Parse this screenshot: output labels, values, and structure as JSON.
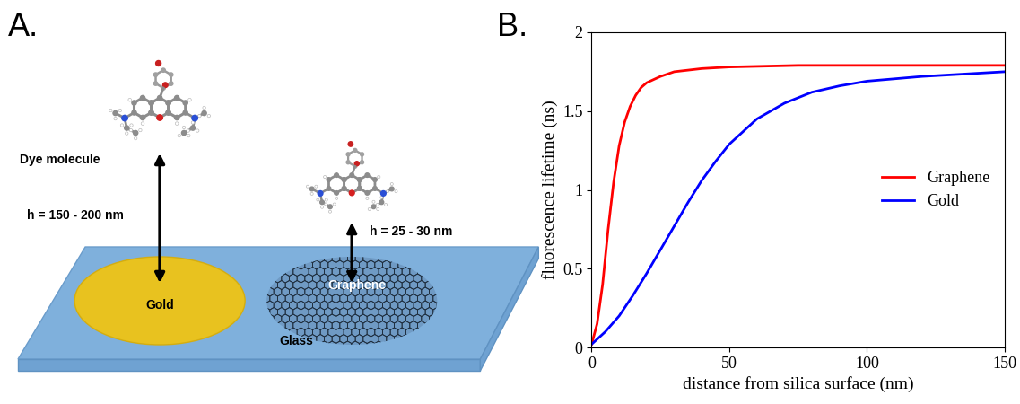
{
  "panel_labels": [
    "A.",
    "B."
  ],
  "diagram": {
    "molecule_label": "Dye molecule",
    "gold": {
      "label": "Gold",
      "height_label": "h = 150 - 200 nm"
    },
    "graphene": {
      "label": "Graphene",
      "height_label": "h = 25 - 30 nm"
    },
    "substrate": "Glass"
  },
  "chart_data": {
    "type": "line",
    "x_label": "distance from silica surface (nm)",
    "y_label": "fluorescence lifetime (ns)",
    "xlim": [
      0,
      150
    ],
    "ylim": [
      0,
      2
    ],
    "xticks": [
      0,
      50,
      100,
      150
    ],
    "yticks": [
      0,
      0.5,
      1,
      1.5,
      2
    ],
    "legend": "center right",
    "series": [
      {
        "name": "Graphene",
        "color": "#ff0000",
        "x": [
          0,
          2,
          4,
          6,
          8,
          10,
          12,
          14,
          16,
          18,
          20,
          25,
          30,
          40,
          50,
          75,
          100,
          150
        ],
        "values": [
          0.02,
          0.15,
          0.4,
          0.75,
          1.05,
          1.28,
          1.43,
          1.53,
          1.6,
          1.65,
          1.68,
          1.72,
          1.75,
          1.77,
          1.78,
          1.79,
          1.79,
          1.79
        ]
      },
      {
        "name": "Gold",
        "color": "#0000ff",
        "x": [
          0,
          5,
          10,
          15,
          20,
          25,
          30,
          35,
          40,
          45,
          50,
          60,
          70,
          80,
          90,
          100,
          120,
          150
        ],
        "values": [
          0.02,
          0.1,
          0.2,
          0.33,
          0.47,
          0.62,
          0.77,
          0.92,
          1.06,
          1.18,
          1.29,
          1.45,
          1.55,
          1.62,
          1.66,
          1.69,
          1.72,
          1.75
        ]
      }
    ]
  }
}
